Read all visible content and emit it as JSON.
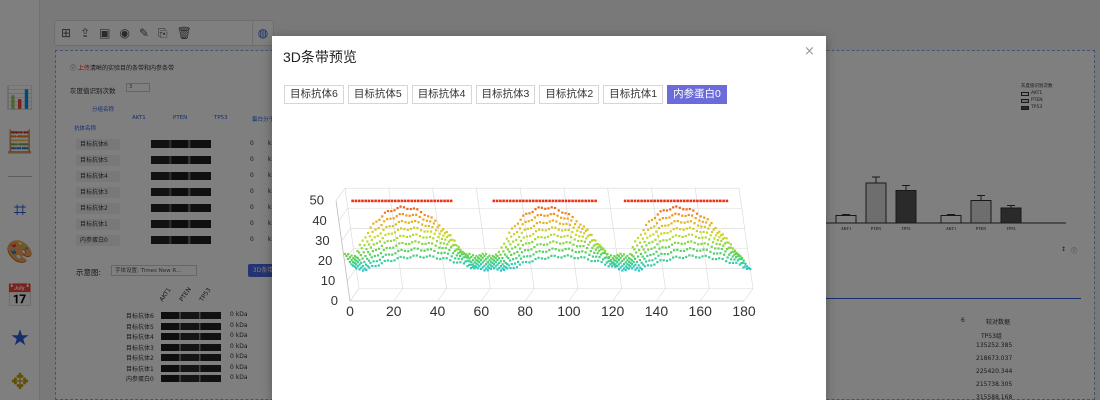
{
  "background": {
    "hint_prefix": "上传",
    "hint_text": "清晰的实验目的条带和内参条带",
    "gray_label": "灰度值识别次数",
    "gray_count": "3",
    "group_name_label": "分组名称",
    "antibody_name_label": "抗体名称",
    "protein_label": "蛋白分子",
    "columns": [
      "AKT1",
      "PTEN",
      "TP53"
    ],
    "rows": [
      "目标抗体6",
      "目标抗体5",
      "目标抗体4",
      "目标抗体3",
      "目标抗体2",
      "目标抗体1",
      "内参蛋白0"
    ],
    "zero": "0",
    "unit_short": "k",
    "demo_label": "示意图:",
    "font_select": "字体设置: Times New R...",
    "preview_button": "3D条带",
    "demo_unit": "0 kDa",
    "legend_title": "灰度值识别次数",
    "legend_items": [
      "AKT1",
      "PTEN",
      "TP53"
    ],
    "right_table_header": "TP53组",
    "right_table_values": [
      "135252.385",
      "218673.037",
      "225420.344",
      "215738.305",
      "315588.168"
    ],
    "right_top_left": "6",
    "right_top_right": "较对数据",
    "bar_group_labels": [
      "AKT1",
      "PTEN\n目标抗体6",
      "TP53",
      "AKT1",
      "PTEN\n目标抗体5",
      "TP53"
    ],
    "bar_values": [
      0.15,
      0.8,
      0.65,
      0.15,
      0.45,
      0.3
    ],
    "bar_errors": [
      0.02,
      0.12,
      0.1,
      0.02,
      0.1,
      0.05
    ]
  },
  "modal": {
    "title": "3D条带预览",
    "close_symbol": "×",
    "tabs": [
      "目标抗体6",
      "目标抗体5",
      "目标抗体4",
      "目标抗体3",
      "目标抗体2",
      "目标抗体1",
      "内参蛋白0"
    ],
    "active_tab_index": 6
  },
  "chart_data": {
    "type": "scatter",
    "title": "",
    "xlabel": "",
    "ylabel": "",
    "x_ticks": [
      "0",
      "20",
      "40",
      "60",
      "80",
      "100",
      "120",
      "140",
      "160",
      "180"
    ],
    "z_ticks": [
      "0",
      "10",
      "20",
      "30",
      "40",
      "50"
    ],
    "xlim": [
      0,
      180
    ],
    "zlim": [
      0,
      50
    ],
    "depth_rows": 9,
    "band_centers": [
      30,
      95,
      155
    ],
    "band_half_width": 25,
    "grid": true,
    "colormap": "red-top-to-blue-bottom"
  }
}
